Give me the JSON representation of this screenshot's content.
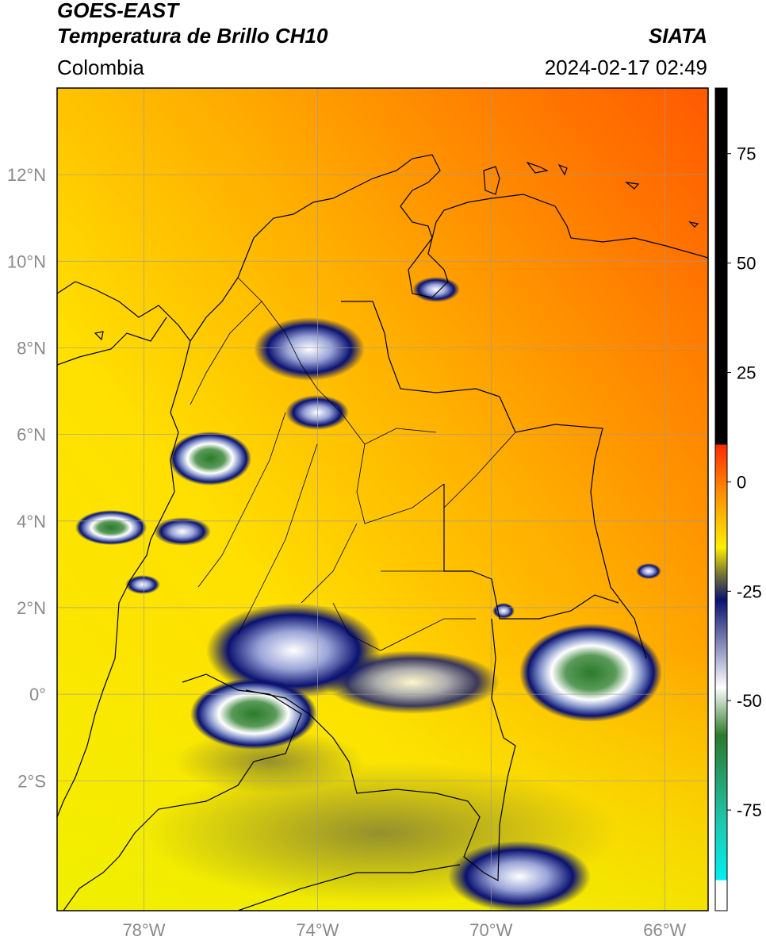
{
  "header": {
    "satellite": "GOES-EAST",
    "product": "Temperatura de Brillo CH10",
    "region": "Colombia",
    "organization": "SIATA",
    "timestamp": "2024-02-17 02:49"
  },
  "map": {
    "lon_range": [
      -80,
      -65
    ],
    "lat_range": [
      -5,
      14
    ],
    "lat_ticks": [
      {
        "value": 12,
        "label": "12°N"
      },
      {
        "value": 10,
        "label": "10°N"
      },
      {
        "value": 8,
        "label": "8°N"
      },
      {
        "value": 6,
        "label": "6°N"
      },
      {
        "value": 4,
        "label": "4°N"
      },
      {
        "value": 2,
        "label": "2°N"
      },
      {
        "value": 0,
        "label": "0°"
      },
      {
        "value": -2,
        "label": "2°S"
      }
    ],
    "lon_ticks": [
      {
        "value": -78,
        "label": "78°W"
      },
      {
        "value": -74,
        "label": "74°W"
      },
      {
        "value": -70,
        "label": "70°W"
      },
      {
        "value": -66,
        "label": "66°W"
      }
    ]
  },
  "colorbar": {
    "range": [
      -98,
      90
    ],
    "ticks": [
      {
        "value": 75,
        "label": "75"
      },
      {
        "value": 50,
        "label": "50"
      },
      {
        "value": 25,
        "label": "25"
      },
      {
        "value": 0,
        "label": "0"
      },
      {
        "value": -25,
        "label": "-25"
      },
      {
        "value": -50,
        "label": "-50"
      },
      {
        "value": -75,
        "label": "-75"
      }
    ],
    "colors": {
      "black": "#000000",
      "red": "#ff2a00",
      "orange": "#ff8a00",
      "yellow": "#ffee00",
      "olive": "#777733",
      "navy": "#0a1270",
      "white": "#ffffff",
      "green": "#2a7a2a",
      "teal": "#1ec8b0",
      "cyan": "#00f0f0"
    }
  }
}
